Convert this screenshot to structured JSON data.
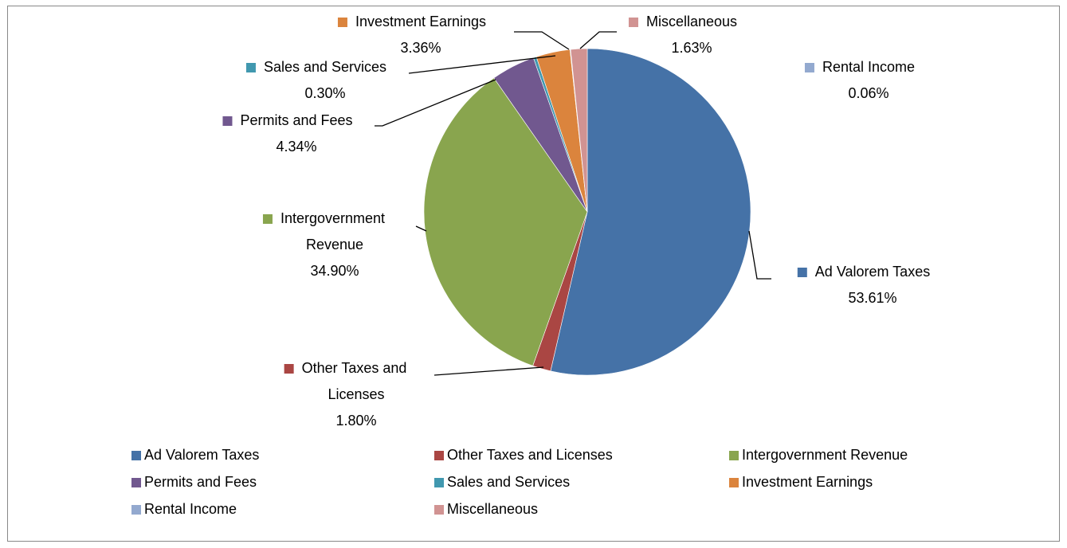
{
  "chart_data": {
    "type": "pie",
    "categories": [
      "Ad Valorem Taxes",
      "Other Taxes and Licenses",
      "Intergovernment Revenue",
      "Permits and Fees",
      "Sales and Services",
      "Investment Earnings",
      "Rental Income",
      "Miscellaneous"
    ],
    "values": [
      53.61,
      1.8,
      34.9,
      4.34,
      0.3,
      3.36,
      0.06,
      1.63
    ],
    "value_labels": [
      "53.61%",
      "1.80%",
      "34.90%",
      "4.34%",
      "0.30%",
      "3.36%",
      "0.06%",
      "1.63%"
    ],
    "colors": [
      "#4572A7",
      "#AA4643",
      "#89A54E",
      "#71588F",
      "#4198AF",
      "#DB843D",
      "#93A9CF",
      "#D19392"
    ],
    "legend": "bottom"
  }
}
